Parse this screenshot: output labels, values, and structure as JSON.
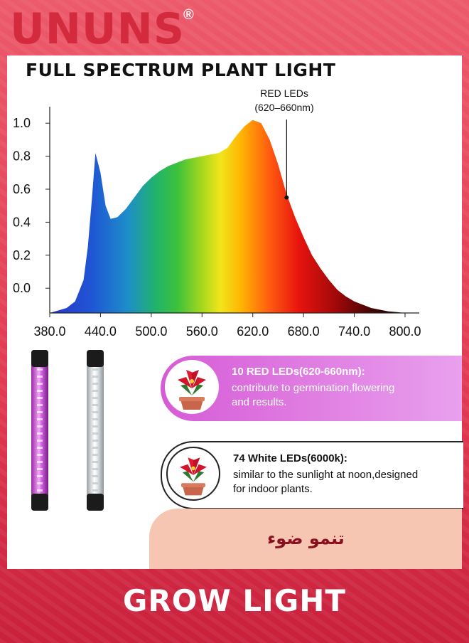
{
  "brand": {
    "logo": "UNUNS",
    "mark": "®"
  },
  "chart_data": {
    "type": "area",
    "title": "FULL SPECTRUM PLANT LIGHT",
    "xlabel": "",
    "ylabel": "",
    "xlim": [
      380,
      800
    ],
    "ylim": [
      -0.15,
      1.1
    ],
    "x_ticks": [
      380,
      440,
      500,
      560,
      620,
      680,
      740,
      800
    ],
    "x_tick_labels": [
      "380.0",
      "440.0",
      "500.0",
      "560.0",
      "620.0",
      "680.0",
      "740.0",
      "800.0"
    ],
    "y_ticks": [
      0.0,
      0.2,
      0.4,
      0.6,
      0.8,
      1.0
    ],
    "y_tick_labels": [
      "0.0",
      "0.2",
      "0.4",
      "0.6",
      "0.8",
      "1.0"
    ],
    "series": [
      {
        "x": [
          380,
          400,
          410,
          420,
          425,
          430,
          434,
          440,
          446,
          452,
          460,
          470,
          480,
          490,
          500,
          510,
          520,
          530,
          540,
          550,
          560,
          570,
          580,
          590,
          600,
          610,
          620,
          630,
          640,
          650,
          660,
          670,
          680,
          690,
          700,
          710,
          720,
          730,
          740,
          750,
          760,
          770,
          780,
          790,
          800
        ],
        "y": [
          -0.15,
          -0.12,
          -0.08,
          0.05,
          0.25,
          0.55,
          0.82,
          0.7,
          0.5,
          0.42,
          0.43,
          0.48,
          0.55,
          0.62,
          0.67,
          0.71,
          0.74,
          0.76,
          0.78,
          0.79,
          0.8,
          0.81,
          0.82,
          0.85,
          0.92,
          0.98,
          1.02,
          1.0,
          0.9,
          0.75,
          0.57,
          0.43,
          0.31,
          0.2,
          0.12,
          0.05,
          -0.01,
          -0.05,
          -0.08,
          -0.1,
          -0.12,
          -0.13,
          -0.14,
          -0.145,
          -0.15
        ]
      }
    ],
    "annotation": {
      "label_line1": "RED LEDs",
      "label_line2": "(620–660nm)",
      "x": 660,
      "y": 0.55
    }
  },
  "cards": {
    "red": {
      "title": "10 RED LEDs(620-660nm):",
      "line1": "contribute to germination,flowering",
      "line2": "and results."
    },
    "white": {
      "title": "74 White LEDs(6000k):",
      "line1": "similar to the sunlight at noon,designed",
      "line2": " for indoor plants."
    }
  },
  "arabic_label": "تنمو ضوء",
  "footer": {
    "title": "GROW LIGHT"
  },
  "colors": {
    "brand_red": "#d42a3e",
    "card_pink": "#d65bd6",
    "peach": "#f6c6b2",
    "arabic_text": "#8a0f1f"
  }
}
